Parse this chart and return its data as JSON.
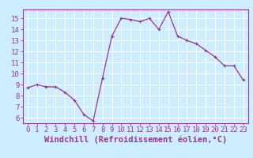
{
  "x": [
    0,
    1,
    2,
    3,
    4,
    5,
    6,
    7,
    8,
    9,
    10,
    11,
    12,
    13,
    14,
    15,
    16,
    17,
    18,
    19,
    20,
    21,
    22,
    23
  ],
  "y": [
    8.7,
    9.0,
    8.8,
    8.8,
    8.3,
    7.6,
    6.3,
    5.7,
    9.6,
    13.4,
    15.0,
    14.9,
    14.7,
    15.0,
    14.0,
    15.6,
    13.4,
    13.0,
    12.7,
    12.1,
    11.5,
    10.7,
    10.7,
    9.4
  ],
  "line_color": "#993399",
  "marker": "+",
  "marker_size": 3,
  "marker_linewidth": 0.8,
  "bg_color": "#cceeff",
  "grid_color": "#ffffff",
  "xlabel": "Windchill (Refroidissement éolien,°C)",
  "xlim": [
    -0.5,
    23.5
  ],
  "ylim": [
    5.5,
    15.8
  ],
  "yticks": [
    6,
    7,
    8,
    9,
    10,
    11,
    12,
    13,
    14,
    15
  ],
  "xticks": [
    0,
    1,
    2,
    3,
    4,
    5,
    6,
    7,
    8,
    9,
    10,
    11,
    12,
    13,
    14,
    15,
    16,
    17,
    18,
    19,
    20,
    21,
    22,
    23
  ],
  "tick_label_fontsize": 6.5,
  "xlabel_fontsize": 7.5,
  "axis_color": "#993399",
  "tick_color": "#993399",
  "line_width": 0.9
}
